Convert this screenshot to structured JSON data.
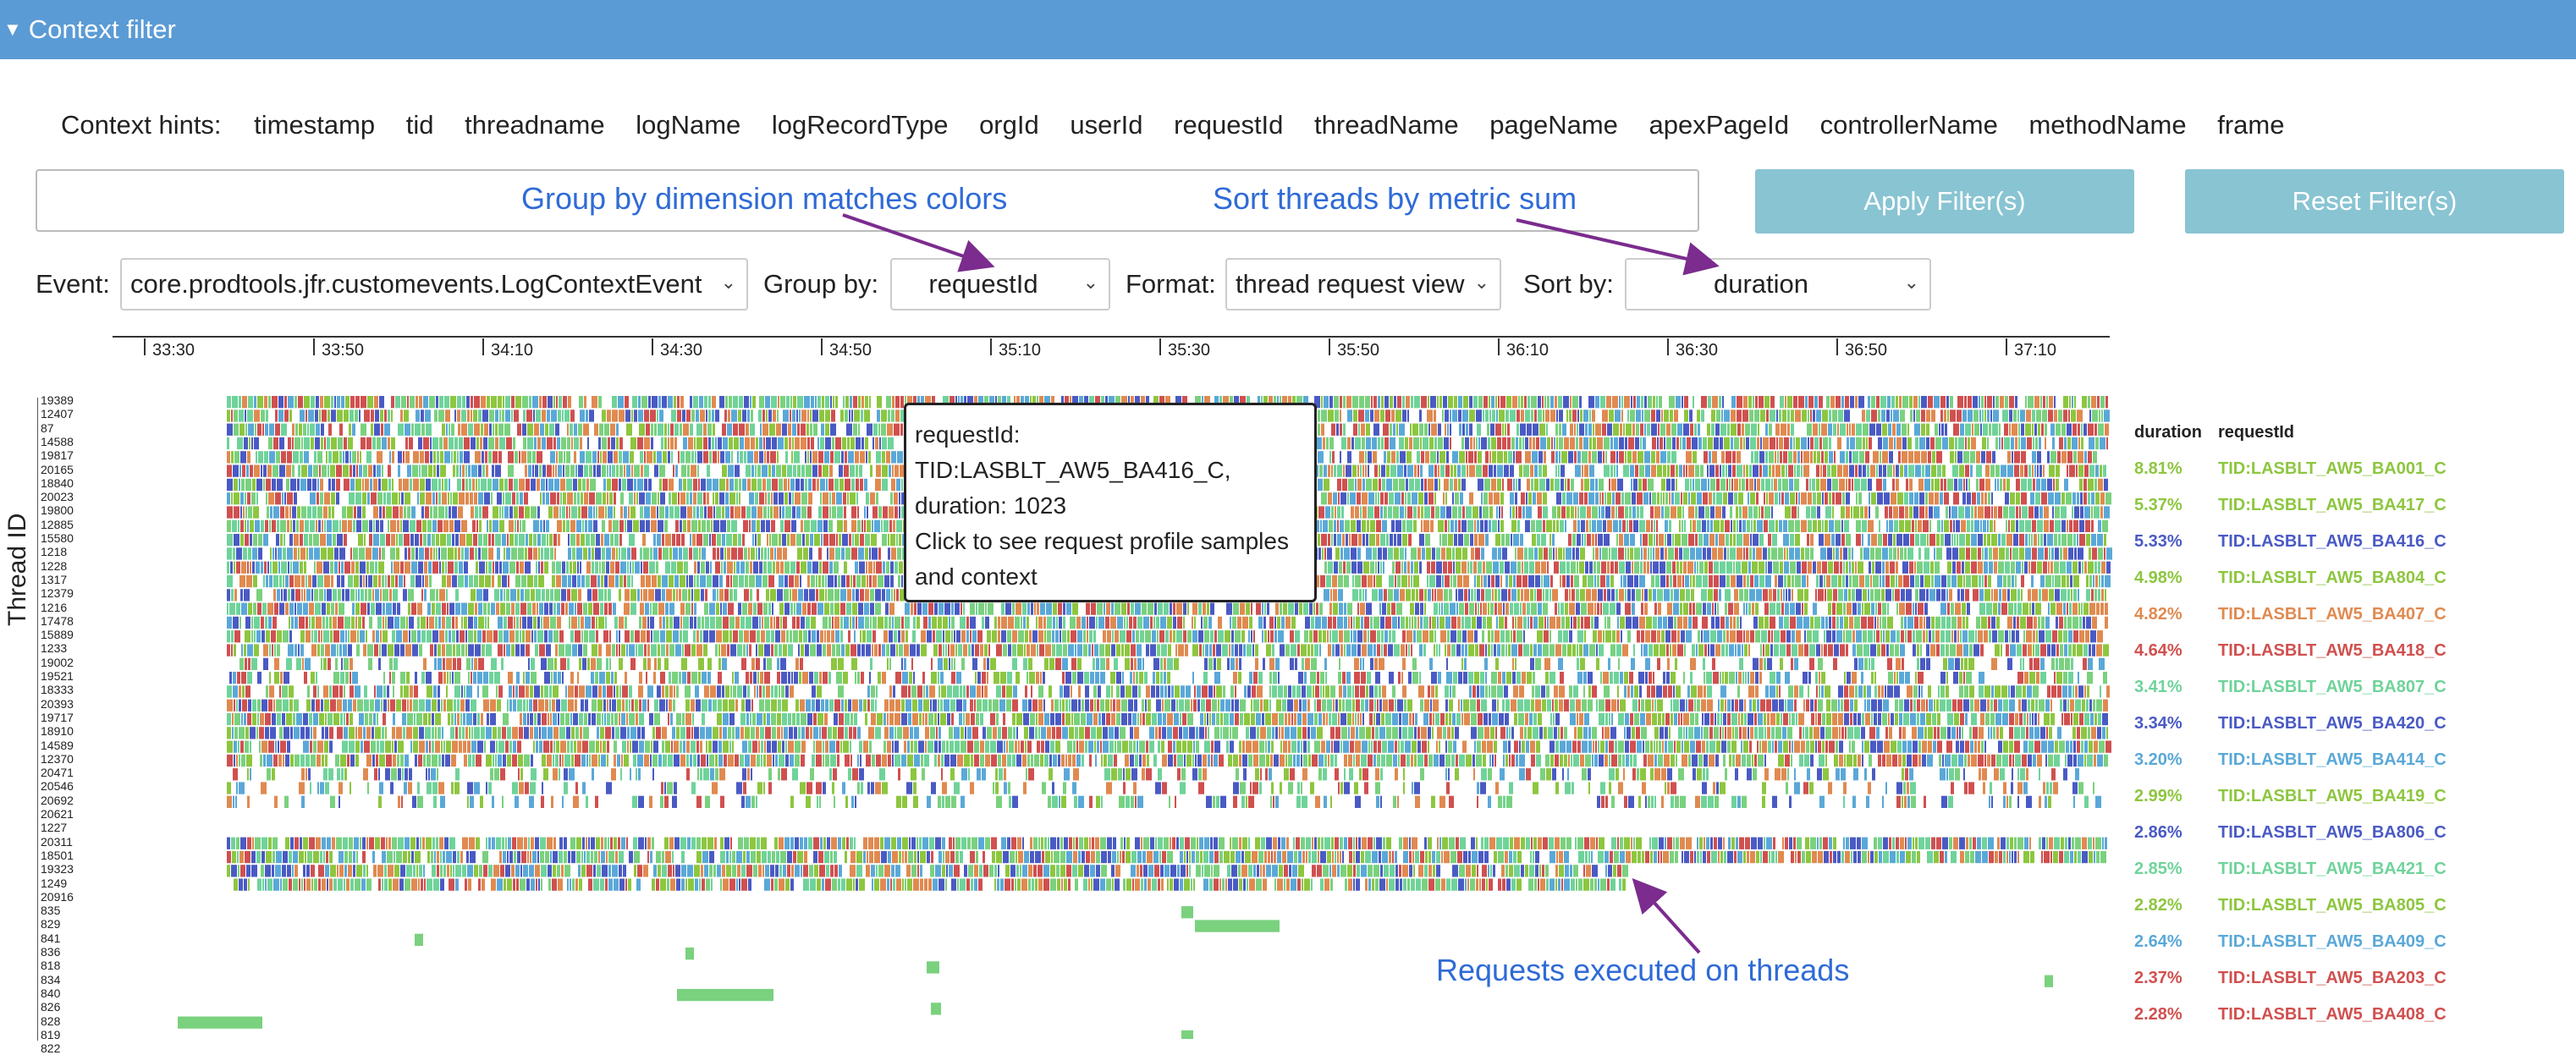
{
  "header": {
    "title": "Context filter"
  },
  "hints": {
    "label": "Context hints:",
    "items": [
      "timestamp",
      "tid",
      "threadname",
      "logName",
      "logRecordType",
      "orgId",
      "userId",
      "requestId",
      "threadName",
      "pageName",
      "apexPageId",
      "controllerName",
      "methodName",
      "frame"
    ]
  },
  "filter": {
    "value": ""
  },
  "buttons": {
    "apply": "Apply Filter(s)",
    "reset": "Reset Filter(s)"
  },
  "annotations": {
    "group": "Group by dimension matches colors",
    "sort": "Sort threads by metric sum",
    "requests": "Requests executed on threads"
  },
  "controls": {
    "event_label": "Event:",
    "event_value": "core.prodtools.jfr.customevents.LogContextEvent",
    "group_label": "Group by:",
    "group_value": "requestId",
    "format_label": "Format:",
    "format_value": "thread request view",
    "sort_label": "Sort by:",
    "sort_value": "duration"
  },
  "axis": {
    "y_label": "Thread ID",
    "x_ticks": [
      "33:30",
      "33:50",
      "34:10",
      "34:30",
      "34:50",
      "35:10",
      "35:30",
      "35:50",
      "36:10",
      "36:30",
      "36:50",
      "37:10"
    ],
    "threads": [
      "19389",
      "12407",
      "87",
      "14588",
      "19817",
      "20165",
      "18840",
      "20023",
      "19800",
      "12885",
      "15580",
      "1218",
      "1228",
      "1317",
      "12379",
      "1216",
      "17478",
      "15889",
      "1233",
      "19002",
      "19521",
      "18333",
      "20393",
      "19717",
      "18910",
      "14589",
      "12370",
      "20471",
      "20546",
      "20692",
      "20621",
      "1227",
      "20311",
      "18501",
      "19323",
      "1249",
      "20916",
      "835",
      "829",
      "841",
      "836",
      "818",
      "834",
      "840",
      "826",
      "828",
      "819",
      "822"
    ]
  },
  "tooltip": {
    "line1": "requestId:",
    "line2": "TID:LASBLT_AW5_BA416_C,",
    "line3": "duration: 1023",
    "line4": "Click to see request profile samples",
    "line5": "and context"
  },
  "legend": {
    "metric_header": "duration",
    "name_header": "requestId",
    "rows": [
      {
        "pct": "8.81%",
        "name": "TID:LASBLT_AW5_BA001_C",
        "color": "#8dc63f"
      },
      {
        "pct": "5.37%",
        "name": "TID:LASBLT_AW5_BA417_C",
        "color": "#8dc63f"
      },
      {
        "pct": "5.33%",
        "name": "TID:LASBLT_AW5_BA416_C",
        "color": "#4a5ac4"
      },
      {
        "pct": "4.98%",
        "name": "TID:LASBLT_AW5_BA804_C",
        "color": "#8dc63f"
      },
      {
        "pct": "4.82%",
        "name": "TID:LASBLT_AW5_BA407_C",
        "color": "#e08a50"
      },
      {
        "pct": "4.64%",
        "name": "TID:LASBLT_AW5_BA418_C",
        "color": "#d0504f"
      },
      {
        "pct": "3.41%",
        "name": "TID:LASBLT_AW5_BA807_C",
        "color": "#6fd39a"
      },
      {
        "pct": "3.34%",
        "name": "TID:LASBLT_AW5_BA420_C",
        "color": "#4a5ac4"
      },
      {
        "pct": "3.20%",
        "name": "TID:LASBLT_AW5_BA414_C",
        "color": "#5aa8d8"
      },
      {
        "pct": "2.99%",
        "name": "TID:LASBLT_AW5_BA419_C",
        "color": "#8dc63f"
      },
      {
        "pct": "2.86%",
        "name": "TID:LASBLT_AW5_BA806_C",
        "color": "#4a5ac4"
      },
      {
        "pct": "2.85%",
        "name": "TID:LASBLT_AW5_BA421_C",
        "color": "#6fd39a"
      },
      {
        "pct": "2.82%",
        "name": "TID:LASBLT_AW5_BA805_C",
        "color": "#8dc63f"
      },
      {
        "pct": "2.64%",
        "name": "TID:LASBLT_AW5_BA409_C",
        "color": "#5aa8d8"
      },
      {
        "pct": "2.37%",
        "name": "TID:LASBLT_AW5_BA203_C",
        "color": "#d0504f"
      },
      {
        "pct": "2.28%",
        "name": "TID:LASBLT_AW5_BA408_C",
        "color": "#d0504f"
      }
    ]
  },
  "colors": {
    "header_bg": "#5b9bd5",
    "button_bg": "#89c4d2",
    "annotation": "#2f6bd6",
    "arrow": "#7b2c8e",
    "palette": [
      "#8dc63f",
      "#4a5ac4",
      "#e08a50",
      "#d0504f",
      "#6fd39a",
      "#5aa8d8",
      "#7ad17e"
    ]
  }
}
